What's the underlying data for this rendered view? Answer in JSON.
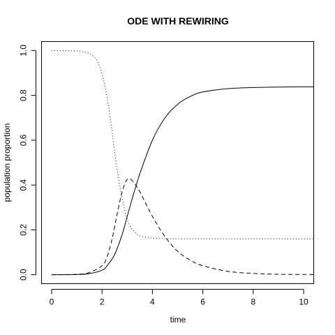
{
  "chart_data": {
    "type": "line",
    "title": "ODE WITH REWIRING",
    "xlabel": "time",
    "ylabel": "population proportion",
    "xlim": [
      -0.4,
      10.4
    ],
    "ylim": [
      -0.04,
      1.04
    ],
    "x_ticks": [
      0,
      2,
      4,
      6,
      8,
      10
    ],
    "y_ticks": [
      0.0,
      0.2,
      0.4,
      0.6,
      0.8,
      1.0
    ],
    "x_tick_labels": [
      "0",
      "2",
      "4",
      "6",
      "8",
      "10"
    ],
    "y_tick_labels": [
      "0.0",
      "0.2",
      "0.4",
      "0.6",
      "0.8",
      "1.0"
    ],
    "grid": false,
    "legend": "none",
    "series": [
      {
        "name": "solid",
        "style": "solid",
        "x": [
          0,
          1,
          1.5,
          2,
          2.2,
          2.5,
          2.8,
          3.0,
          3.2,
          3.5,
          4.0,
          4.5,
          5.0,
          5.5,
          6.0,
          7.0,
          8.0,
          9.0,
          10.4
        ],
        "y": [
          0.0,
          0.001,
          0.005,
          0.02,
          0.04,
          0.09,
          0.18,
          0.26,
          0.34,
          0.45,
          0.6,
          0.7,
          0.76,
          0.795,
          0.815,
          0.83,
          0.835,
          0.837,
          0.838
        ]
      },
      {
        "name": "dashed",
        "style": "dashed",
        "x": [
          0,
          1,
          1.5,
          2,
          2.2,
          2.4,
          2.6,
          2.8,
          3.0,
          3.2,
          3.5,
          4.0,
          4.5,
          5.0,
          5.5,
          6.0,
          7.0,
          8.0,
          9.0,
          10.4
        ],
        "y": [
          0.0,
          0.002,
          0.01,
          0.04,
          0.08,
          0.16,
          0.27,
          0.37,
          0.425,
          0.42,
          0.37,
          0.26,
          0.17,
          0.105,
          0.065,
          0.04,
          0.015,
          0.006,
          0.002,
          0.001
        ]
      },
      {
        "name": "dotted",
        "style": "dotted",
        "x": [
          0,
          1,
          1.4,
          1.7,
          1.9,
          2.1,
          2.3,
          2.5,
          2.7,
          2.9,
          3.1,
          3.4,
          3.7,
          4.0,
          4.5,
          5.0,
          6.0,
          8.0,
          10.4
        ],
        "y": [
          1.0,
          0.998,
          0.99,
          0.97,
          0.93,
          0.85,
          0.72,
          0.55,
          0.4,
          0.29,
          0.22,
          0.18,
          0.168,
          0.163,
          0.161,
          0.16,
          0.16,
          0.16,
          0.16
        ]
      }
    ]
  }
}
